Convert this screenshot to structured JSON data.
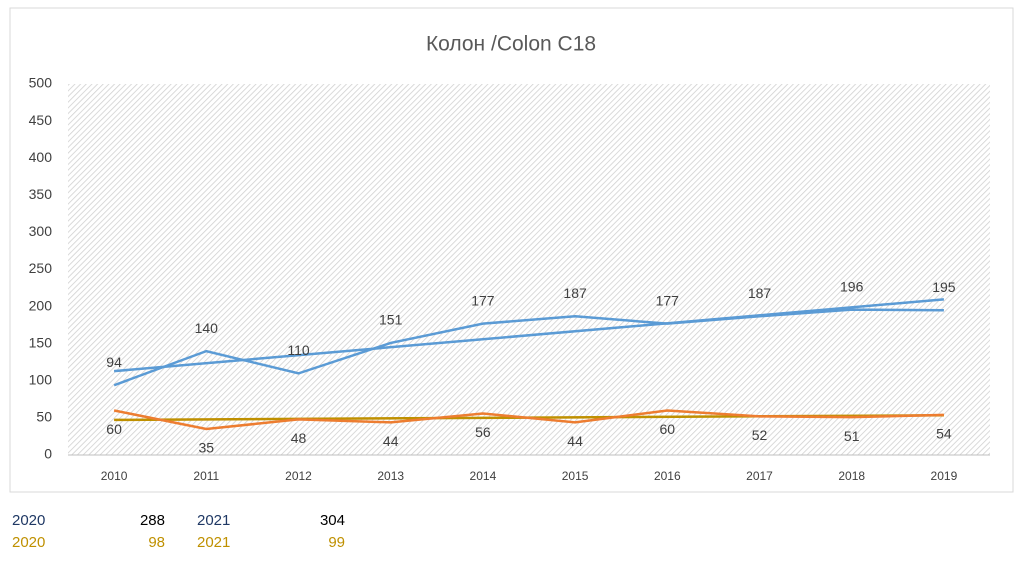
{
  "chart_data": {
    "type": "line",
    "title": "Колон /Colon C18",
    "categories": [
      "2010",
      "2011",
      "2012",
      "2013",
      "2014",
      "2015",
      "2016",
      "2017",
      "2018",
      "2019"
    ],
    "series": [
      {
        "color": "#5b9bd5",
        "trendline": true,
        "trendline_color": "#5b9bd5",
        "label_position": "above",
        "values": [
          94,
          140,
          110,
          151,
          177,
          187,
          177,
          187,
          196,
          195
        ]
      },
      {
        "color": "#ed7d31",
        "trendline": true,
        "trendline_color": "#bf9000",
        "label_position": "below",
        "values": [
          60,
          35,
          48,
          44,
          56,
          44,
          60,
          52,
          51,
          54
        ]
      }
    ],
    "ylim": [
      0,
      500
    ],
    "yticks": [
      0,
      50,
      100,
      150,
      200,
      250,
      300,
      350,
      400,
      450,
      500
    ],
    "grid": false
  },
  "footer": {
    "rows": [
      {
        "label_color": "#1f3864",
        "value_color": "#000000",
        "cells": [
          "2020",
          288,
          "2021",
          304
        ]
      },
      {
        "label_color": "#bf9000",
        "value_color": "#bf9000",
        "cells": [
          "2020",
          98,
          "2021",
          99
        ]
      }
    ]
  }
}
